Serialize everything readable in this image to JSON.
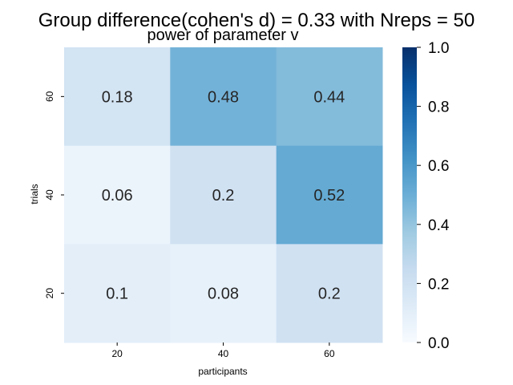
{
  "chart_data": {
    "type": "heatmap",
    "suptitle": "Group difference(cohen's d) = 0.33 with Nreps = 50",
    "title": "power of parameter v",
    "xlabel": "participants",
    "ylabel": "trials",
    "x_categories": [
      "20",
      "40",
      "60"
    ],
    "y_categories": [
      "60",
      "40",
      "20"
    ],
    "values": [
      [
        0.18,
        0.48,
        0.44
      ],
      [
        0.06,
        0.2,
        0.52
      ],
      [
        0.1,
        0.08,
        0.2
      ]
    ],
    "annotations": [
      [
        "0.18",
        "0.48",
        "0.44"
      ],
      [
        "0.06",
        "0.2",
        "0.52"
      ],
      [
        "0.1",
        "0.08",
        "0.2"
      ]
    ],
    "colorbar": {
      "colormap": "Blues",
      "vmin": 0.0,
      "vmax": 1.0,
      "ticks": [
        "0.0",
        "0.2",
        "0.4",
        "0.6",
        "0.8",
        "1.0"
      ]
    }
  }
}
